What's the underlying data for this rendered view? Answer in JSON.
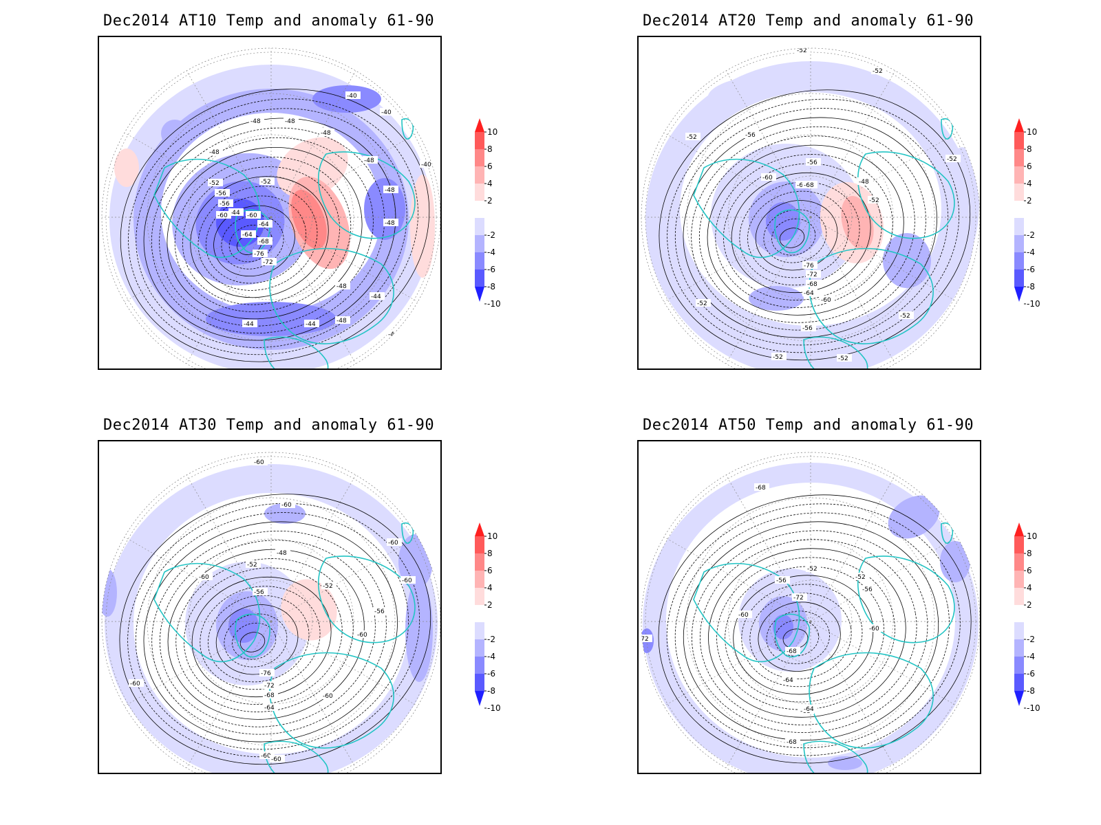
{
  "colorbar": {
    "labels": [
      "10",
      "8",
      "6",
      "4",
      "2",
      "-2",
      "-4",
      "-6",
      "-8",
      "-10"
    ],
    "colors": [
      "#ff2020",
      "#ff5a5a",
      "#ff8888",
      "#ffb4b4",
      "#ffdcdc",
      "#ffffff",
      "#dcdcff",
      "#b4b4ff",
      "#8a8aff",
      "#5a5aff",
      "#2020ff"
    ]
  },
  "panels": [
    {
      "title": "Dec2014 AT10 Temp and anomaly 61-90",
      "contour_labels": [
        "-40",
        "-40",
        "-40",
        "-44",
        "-44",
        "-44",
        "-44",
        "-44",
        "-44",
        "-48",
        "-48",
        "-48",
        "-48",
        "-48",
        "-48",
        "-48",
        "-48",
        "-52",
        "-52",
        "-56",
        "-56",
        "-60",
        "-60",
        "-64",
        "-64",
        "-68",
        "-72",
        "-76",
        "-48"
      ]
    },
    {
      "title": "Dec2014 AT20 Temp and anomaly 61-90",
      "contour_labels": [
        "-52",
        "-52",
        "-52",
        "-52",
        "-52",
        "-52",
        "-52",
        "-52",
        "-56",
        "-56",
        "-56",
        "-60",
        "-60",
        "-64",
        "-64",
        "-68",
        "-68",
        "-72",
        "-76",
        "-48",
        "-52"
      ]
    },
    {
      "title": "Dec2014 AT30 Temp and anomaly 61-90",
      "contour_labels": [
        "-60",
        "-60",
        "-60",
        "-60",
        "-60",
        "-60",
        "-60",
        "-60",
        "-60",
        "-48",
        "-52",
        "-52",
        "-56",
        "-56",
        "-64",
        "-68",
        "-72",
        "-76",
        "-60"
      ]
    },
    {
      "title": "Dec2014 AT50 Temp and anomaly 61-90",
      "contour_labels": [
        "-68",
        "-68",
        "-68",
        "-52",
        "-52",
        "-56",
        "-56",
        "-60",
        "-60",
        "-64",
        "-64",
        "-68",
        "-72",
        "-72"
      ]
    }
  ]
}
